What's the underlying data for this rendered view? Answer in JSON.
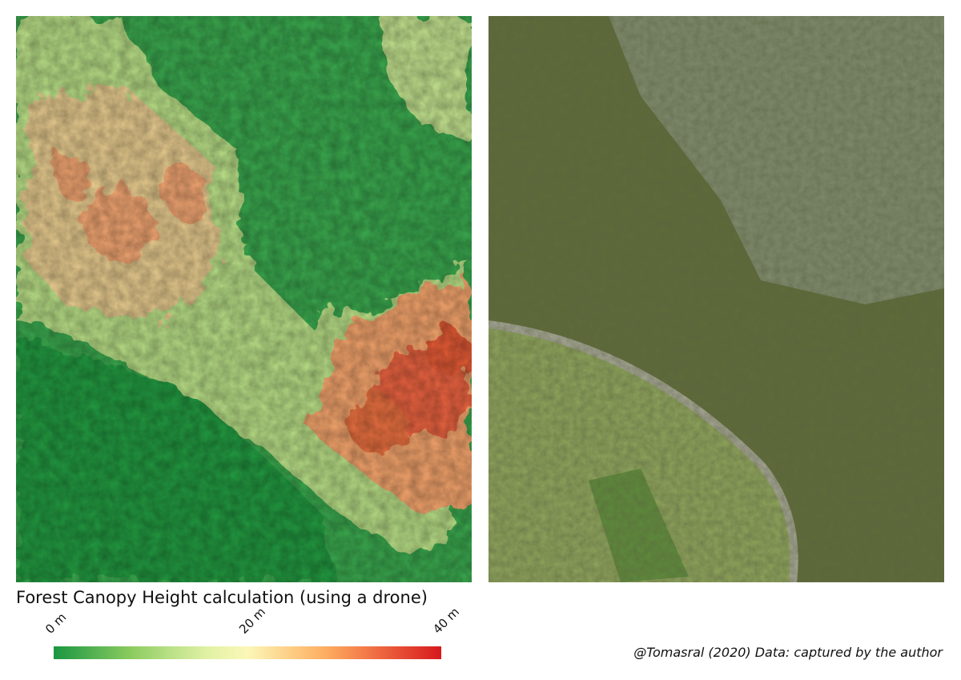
{
  "title": "Forest Canopy Height calculation (using a drone)",
  "legend": {
    "range": [
      0,
      40
    ],
    "ticks": [
      {
        "value": 0,
        "label": "0 m"
      },
      {
        "value": 20,
        "label": "20 m"
      },
      {
        "value": 40,
        "label": "40 m"
      }
    ],
    "colors": [
      "#1a9641",
      "#52b151",
      "#8ccb5f",
      "#b9e086",
      "#e2f2a5",
      "#fbf7b8",
      "#fdd28a",
      "#fdae61",
      "#f47c4a",
      "#e54a33",
      "#d7191c"
    ]
  },
  "credit": "@Tomasral (2020) Data: captured by the author"
}
